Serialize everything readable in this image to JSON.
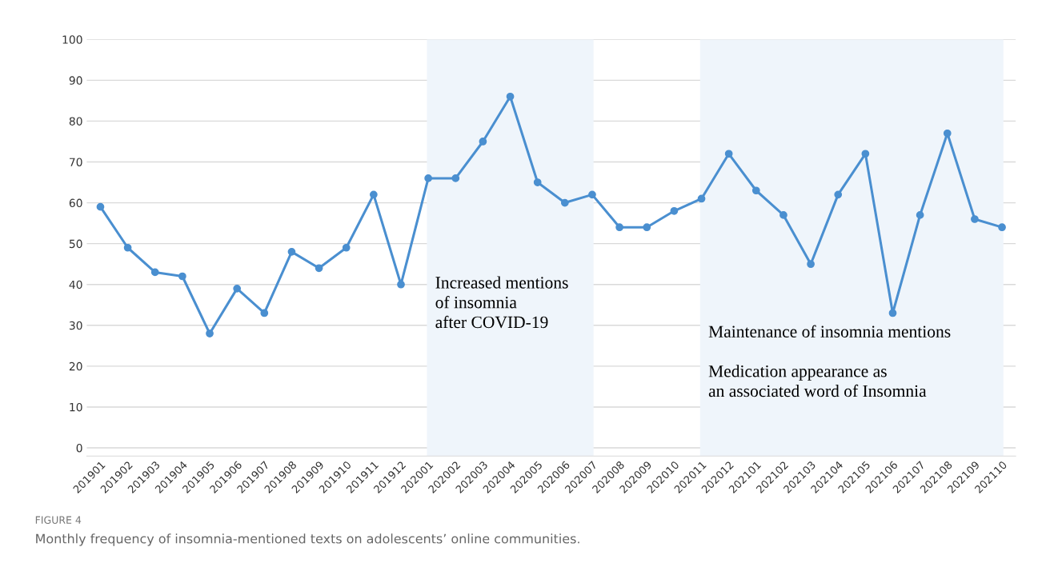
{
  "chart_data": {
    "type": "line",
    "categories": [
      "201901",
      "201902",
      "201903",
      "201904",
      "201905",
      "201906",
      "201907",
      "201908",
      "201909",
      "201910",
      "201911",
      "201912",
      "202001",
      "202002",
      "202003",
      "202004",
      "202005",
      "202006",
      "202007",
      "202008",
      "202009",
      "202010",
      "202011",
      "202012",
      "202101",
      "202102",
      "202103",
      "202104",
      "202105",
      "202106",
      "202107",
      "202108",
      "202109",
      "202110"
    ],
    "series": [
      {
        "color": "#4a8fd0",
        "values": [
          59,
          49,
          43,
          42,
          28,
          39,
          33,
          48,
          44,
          49,
          62,
          40,
          66,
          66,
          75,
          86,
          65,
          60,
          62,
          54,
          54,
          58,
          61,
          72,
          63,
          57,
          45,
          62,
          72,
          33,
          57,
          77,
          56,
          54
        ]
      }
    ],
    "ylim": [
      -2,
      100
    ],
    "yticks": [
      0,
      10,
      20,
      30,
      40,
      50,
      60,
      70,
      80,
      90,
      100
    ],
    "grid": "y",
    "legend": false,
    "marker": "circle",
    "line_style": "solid",
    "bands": [
      {
        "axis": "x",
        "from": "202001",
        "to": "202007",
        "color": "#eff5fb",
        "label": "Increased mentions\nof insomnia\nafter COVID-19"
      },
      {
        "axis": "x",
        "from": "202011",
        "to": "202110",
        "color": "#eff5fb",
        "label": "Maintenance of insomnia mentions\n\nMedication appearance as\nan associated word of Insomnia"
      }
    ],
    "annotations": [
      "FIGURE 4",
      "Monthly frequency of insomnia-mentioned texts on adolescents’ online communities."
    ]
  }
}
